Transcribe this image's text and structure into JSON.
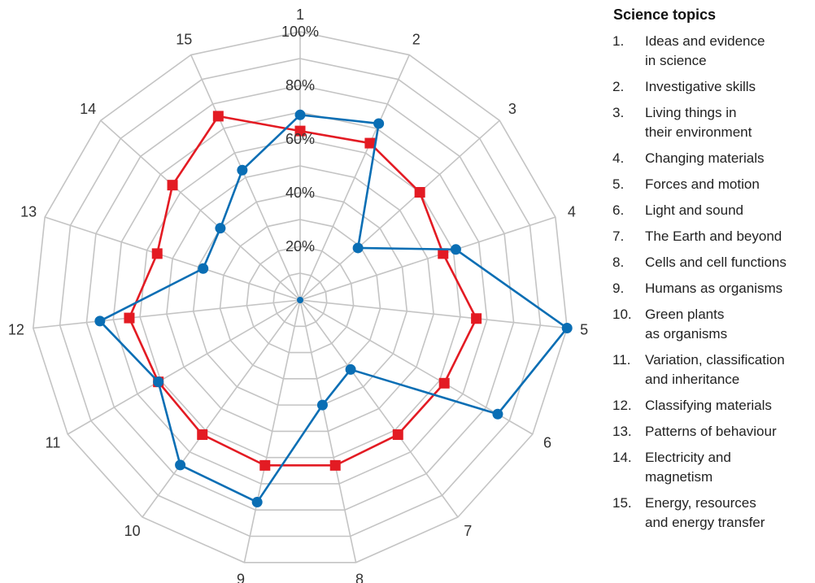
{
  "chart_data": {
    "type": "radar",
    "axes": [
      "1",
      "2",
      "3",
      "4",
      "5",
      "6",
      "7",
      "8",
      "9",
      "10",
      "11",
      "12",
      "13",
      "14",
      "15"
    ],
    "tick_labels": [
      "20%",
      "40%",
      "60%",
      "80%",
      "100%"
    ],
    "ylim": [
      0,
      100
    ],
    "grid": true,
    "series": [
      {
        "color": "#e31b23",
        "marker": "square",
        "values": [
          63,
          64,
          60,
          56,
          66,
          62,
          62,
          63,
          63,
          62,
          61,
          64,
          56,
          64,
          75
        ]
      },
      {
        "color": "#0a6eb4",
        "marker": "circle",
        "values": [
          69,
          72,
          29,
          61,
          100,
          85,
          32,
          40,
          77,
          76,
          61,
          75,
          38,
          40,
          53
        ]
      }
    ]
  },
  "legend": {
    "title": "Science topics",
    "items": [
      {
        "num": "1.",
        "text": "Ideas and evidence\nin science"
      },
      {
        "num": "2.",
        "text": "Investigative skills"
      },
      {
        "num": "3.",
        "text": "Living things in\ntheir environment"
      },
      {
        "num": "4.",
        "text": "Changing materials"
      },
      {
        "num": "5.",
        "text": "Forces and motion"
      },
      {
        "num": "6.",
        "text": "Light and sound"
      },
      {
        "num": "7.",
        "text": "The Earth and beyond"
      },
      {
        "num": "8.",
        "text": "Cells and cell functions"
      },
      {
        "num": "9.",
        "text": "Humans as organisms"
      },
      {
        "num": "10.",
        "text": "Green plants\nas organisms"
      },
      {
        "num": "11.",
        "text": "Variation, classification\nand inheritance"
      },
      {
        "num": "12.",
        "text": "Classifying materials"
      },
      {
        "num": "13.",
        "text": "Patterns of behaviour"
      },
      {
        "num": "14.",
        "text": "Electricity and\nmagnetism"
      },
      {
        "num": "15.",
        "text": "Energy, resources\nand energy transfer"
      }
    ]
  }
}
